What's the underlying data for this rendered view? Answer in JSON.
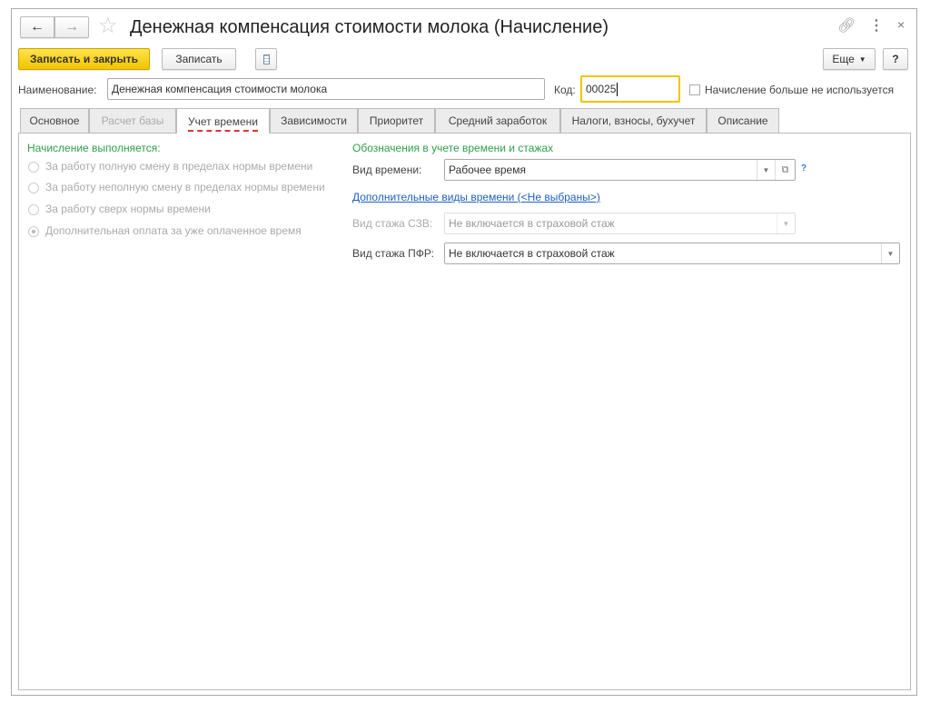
{
  "title": "Денежная компенсация стоимости молока (Начисление)",
  "toolbar": {
    "save_close": "Записать и закрыть",
    "save": "Записать",
    "more": "Еще",
    "help": "?"
  },
  "form": {
    "name_label": "Наименование:",
    "name_value": "Денежная компенсация стоимости молока",
    "code_label": "Код:",
    "code_value": "00025",
    "unused_label": "Начисление больше не используется",
    "unused_checked": false
  },
  "tabs": [
    {
      "label": "Основное"
    },
    {
      "label": "Расчет базы",
      "disabled": true
    },
    {
      "label": "Учет времени",
      "active": true
    },
    {
      "label": "Зависимости"
    },
    {
      "label": "Приоритет"
    },
    {
      "label": "Средний заработок"
    },
    {
      "label": "Налоги, взносы, бухучет"
    },
    {
      "label": "Описание"
    }
  ],
  "left": {
    "header": "Начисление выполняется:",
    "options": [
      "За работу полную смену в пределах нормы времени",
      "За работу неполную смену в пределах нормы времени",
      "За работу сверх нормы времени",
      "Дополнительная оплата за уже оплаченное время"
    ],
    "selected": 3
  },
  "right": {
    "header": "Обозначения в учете времени и стажах",
    "time_label": "Вид времени:",
    "time_value": "Рабочее время",
    "help": "?",
    "extra_link": "Дополнительные виды времени (<Не выбраны>)",
    "szv_label": "Вид стажа СЗВ:",
    "szv_value": "Не включается в страховой стаж",
    "pfr_label": "Вид стажа ПФР:",
    "pfr_value": "Не включается в страховой стаж"
  },
  "colors": {
    "accent_yellow": "#f2c400",
    "section_green": "#2e9e4a",
    "link_blue": "#1f5fbf"
  }
}
